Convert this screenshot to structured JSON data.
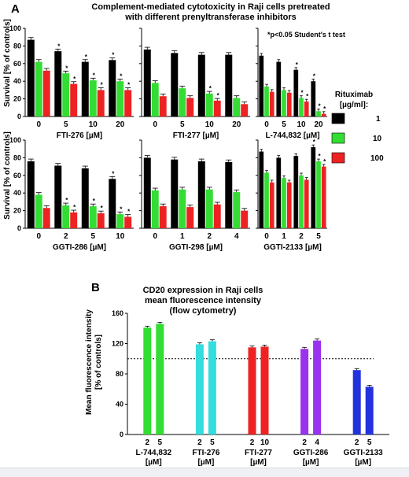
{
  "colors": {
    "c1": "#000000",
    "c10": "#33dd33",
    "c100": "#ee2222"
  },
  "panel_a": {
    "letter": "A",
    "title_line1": "Complement-mediated cytotoxicity in Raji cells pretreated",
    "title_line2": "with different prenyltransferase inhibitors",
    "ylabel": "Survival [% of controls]",
    "significance_note": "*p<0.05 Student's t test",
    "legend_title_line1": "Rituximab",
    "legend_title_line2": "[µg/ml]:",
    "legend": [
      "1",
      "10",
      "100"
    ]
  },
  "panel_b": {
    "letter": "B",
    "title_line1": "CD20 expression in Raji cells",
    "title_line2": "mean fluorescence intensity",
    "title_line3": "(flow cytometry)",
    "ylabel_line1": "Mean fluorescence intensity",
    "ylabel_line2": "[% of controls]"
  },
  "chart_data": [
    {
      "type": "bar",
      "xlabel": "FTI-276 [µM]",
      "ylabel": "Survival [% of controls]",
      "ylim": [
        0,
        100
      ],
      "categories": [
        "0",
        "5",
        "10",
        "20"
      ],
      "series": [
        {
          "name": "1",
          "values": [
            87,
            74,
            62,
            64
          ]
        },
        {
          "name": "10",
          "values": [
            62,
            49,
            41,
            40
          ]
        },
        {
          "name": "100",
          "values": [
            52,
            37,
            30,
            30
          ]
        }
      ],
      "significant": [
        [
          false,
          true,
          true,
          true
        ],
        [
          false,
          true,
          true,
          true
        ],
        [
          false,
          true,
          true,
          true
        ]
      ]
    },
    {
      "type": "bar",
      "xlabel": "FTI-277 [µM]",
      "ylabel": "Survival [% of controls]",
      "ylim": [
        0,
        100
      ],
      "categories": [
        "0",
        "5",
        "10",
        "20"
      ],
      "series": [
        {
          "name": "1",
          "values": [
            76,
            72,
            70,
            70
          ]
        },
        {
          "name": "10",
          "values": [
            38,
            32,
            26,
            21
          ]
        },
        {
          "name": "100",
          "values": [
            23,
            21,
            18,
            14
          ]
        }
      ],
      "significant": [
        [
          false,
          false,
          false,
          false
        ],
        [
          false,
          false,
          true,
          false
        ],
        [
          false,
          false,
          true,
          false
        ]
      ]
    },
    {
      "type": "bar",
      "xlabel": "L-744,832 [µM]",
      "ylabel": "Survival [% of controls]",
      "ylim": [
        0,
        100
      ],
      "categories": [
        "0",
        "5",
        "10",
        "20"
      ],
      "series": [
        {
          "name": "1",
          "values": [
            69,
            62,
            53,
            40
          ]
        },
        {
          "name": "10",
          "values": [
            34,
            30,
            21,
            6
          ]
        },
        {
          "name": "100",
          "values": [
            28,
            27,
            17,
            3
          ]
        }
      ],
      "significant": [
        [
          false,
          false,
          true,
          true
        ],
        [
          false,
          false,
          true,
          true
        ],
        [
          false,
          false,
          true,
          true
        ]
      ]
    },
    {
      "type": "bar",
      "xlabel": "GGTI-286 [µM]",
      "ylabel": "Survival [% of controls]",
      "ylim": [
        0,
        100
      ],
      "categories": [
        "0",
        "2",
        "5",
        "10"
      ],
      "series": [
        {
          "name": "1",
          "values": [
            76,
            71,
            68,
            56
          ]
        },
        {
          "name": "10",
          "values": [
            38,
            26,
            25,
            16
          ]
        },
        {
          "name": "100",
          "values": [
            23,
            18,
            17,
            13
          ]
        }
      ],
      "significant": [
        [
          false,
          false,
          false,
          true
        ],
        [
          false,
          true,
          true,
          true
        ],
        [
          false,
          true,
          true,
          true
        ]
      ]
    },
    {
      "type": "bar",
      "xlabel": "GGTI-298 [µM]",
      "ylabel": "Survival [% of controls]",
      "ylim": [
        0,
        100
      ],
      "categories": [
        "0",
        "1",
        "2",
        "4"
      ],
      "series": [
        {
          "name": "1",
          "values": [
            80,
            78,
            76,
            75
          ]
        },
        {
          "name": "10",
          "values": [
            43,
            44,
            44,
            41
          ]
        },
        {
          "name": "100",
          "values": [
            25,
            24,
            27,
            20
          ]
        }
      ],
      "significant": [
        [
          false,
          false,
          false,
          false
        ],
        [
          false,
          false,
          false,
          false
        ],
        [
          false,
          false,
          false,
          false
        ]
      ]
    },
    {
      "type": "bar",
      "xlabel": "GGTI-2133 [µM]",
      "ylabel": "Survival [% of controls]",
      "ylim": [
        0,
        100
      ],
      "categories": [
        "0",
        "1",
        "2",
        "5"
      ],
      "series": [
        {
          "name": "1",
          "values": [
            87,
            80,
            82,
            92
          ]
        },
        {
          "name": "10",
          "values": [
            63,
            57,
            60,
            76
          ]
        },
        {
          "name": "100",
          "values": [
            52,
            52,
            55,
            70
          ]
        }
      ],
      "significant": [
        [
          false,
          false,
          false,
          true
        ],
        [
          false,
          false,
          false,
          true
        ],
        [
          false,
          false,
          false,
          true
        ]
      ]
    },
    {
      "type": "bar",
      "title": "CD20 expression in Raji cells mean fluorescence intensity (flow cytometry)",
      "ylabel": "Mean fluorescence intensity [% of controls]",
      "ylim": [
        0,
        160
      ],
      "reference_line": 100,
      "groups": [
        {
          "name": "L-744,832",
          "unit": "[µM]",
          "doses": [
            "2",
            "5"
          ],
          "values": [
            141,
            146
          ],
          "color": "#33dd33"
        },
        {
          "name": "FTI-276",
          "unit": "[µM]",
          "doses": [
            "2",
            "5"
          ],
          "values": [
            119,
            123
          ],
          "color": "#33dddd"
        },
        {
          "name": "FTI-277",
          "unit": "[µM]",
          "doses": [
            "2",
            "10"
          ],
          "values": [
            115,
            116
          ],
          "color": "#ee2222"
        },
        {
          "name": "GGTI-286",
          "unit": "[µM]",
          "doses": [
            "2",
            "4"
          ],
          "values": [
            113,
            124
          ],
          "color": "#9933ee"
        },
        {
          "name": "GGTI-2133",
          "unit": "[µM]",
          "doses": [
            "2",
            "5"
          ],
          "values": [
            85,
            63
          ],
          "color": "#2233dd"
        }
      ]
    }
  ]
}
